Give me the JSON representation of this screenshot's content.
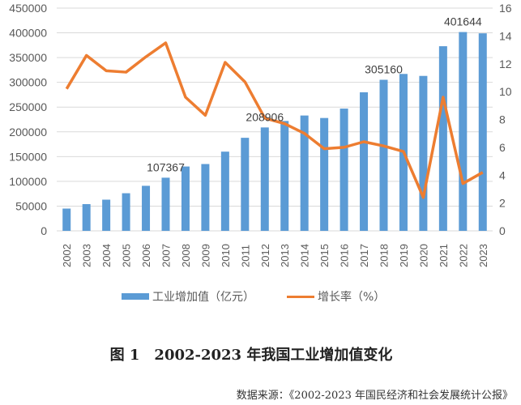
{
  "chart_data": {
    "type": "bar+line",
    "categories": [
      "2002",
      "2003",
      "2004",
      "2005",
      "2006",
      "2007",
      "2008",
      "2009",
      "2010",
      "2011",
      "2012",
      "2013",
      "2014",
      "2015",
      "2016",
      "2017",
      "2018",
      "2019",
      "2020",
      "2021",
      "2022",
      "2023"
    ],
    "series": [
      {
        "name": "工业增加值（亿元）",
        "type": "bar",
        "axis": "left",
        "color": "#5B9BD5",
        "values": [
          45000,
          54000,
          63000,
          76000,
          91000,
          107367,
          130000,
          135000,
          160000,
          188000,
          208906,
          222000,
          233000,
          228000,
          247000,
          280000,
          305160,
          317000,
          313000,
          373000,
          401644,
          399000
        ]
      },
      {
        "name": "增长率（%）",
        "type": "line",
        "axis": "right",
        "color": "#ED7D31",
        "values": [
          10.2,
          12.6,
          11.5,
          11.4,
          12.5,
          13.5,
          9.6,
          8.3,
          12.1,
          10.7,
          8.1,
          7.7,
          7.0,
          5.9,
          6.0,
          6.4,
          6.1,
          5.7,
          2.4,
          9.6,
          3.4,
          4.2
        ]
      }
    ],
    "data_labels": [
      {
        "index": 5,
        "text": "107367"
      },
      {
        "index": 10,
        "text": "208906"
      },
      {
        "index": 16,
        "text": "305160"
      },
      {
        "index": 20,
        "text": "401644"
      }
    ],
    "ylim_left": [
      0,
      450000
    ],
    "yticks_left": [
      "0",
      "50000",
      "100000",
      "150000",
      "200000",
      "250000",
      "300000",
      "350000",
      "400000",
      "450000"
    ],
    "ylim_right": [
      0,
      16
    ],
    "yticks_right": [
      "0",
      "2",
      "4",
      "6",
      "8",
      "10",
      "12",
      "14",
      "16"
    ],
    "grid": true,
    "legend": "bottom"
  },
  "legend": {
    "bar": "工业增加值（亿元）",
    "line": "增长率（%）"
  },
  "title": "图 1　2002-2023 年我国工业增加值变化",
  "source": "数据来源：《2002-2023 年国民经济和社会发展统计公报》"
}
